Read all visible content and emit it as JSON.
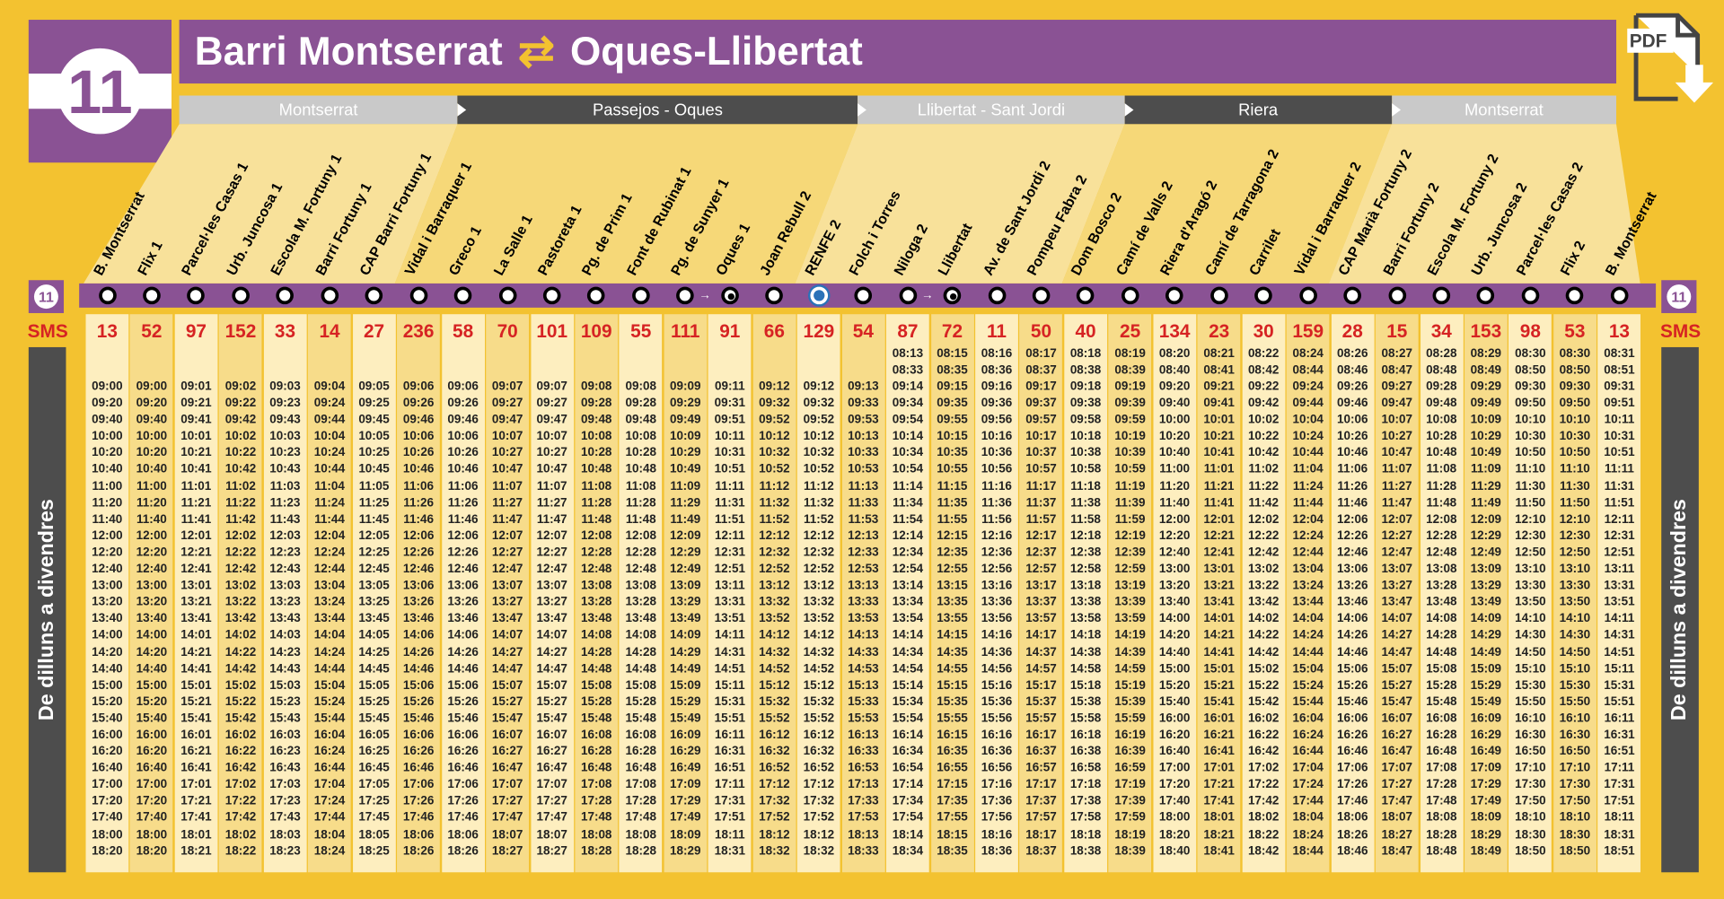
{
  "line": "11",
  "title": {
    "from": "Barri Montserrat",
    "arrows": "⇄",
    "to": "Oques-Llibertat"
  },
  "pdf_label": "PDF",
  "zones": [
    {
      "label": "Montserrat",
      "style": "light",
      "start": 0,
      "end": 7
    },
    {
      "label": "Passejos - Oques",
      "style": "dark",
      "start": 7,
      "end": 16
    },
    {
      "label": "Llibertat - Sant Jordi",
      "style": "light",
      "start": 16,
      "end": 22
    },
    {
      "label": "Riera",
      "style": "dark",
      "start": 22,
      "end": 28
    },
    {
      "label": "Montserrat",
      "style": "light",
      "start": 28,
      "end": 35
    }
  ],
  "sms_label": "SMS",
  "side_label": "De dilluns a divendres",
  "stops": [
    {
      "name": "B. Montserrat",
      "code": "13",
      "type": "normal"
    },
    {
      "name": "Flix 1",
      "code": "52",
      "type": "normal"
    },
    {
      "name": "Parcel·les Casas 1",
      "code": "97",
      "type": "normal"
    },
    {
      "name": "Urb. Juncosa 1",
      "code": "152",
      "type": "normal"
    },
    {
      "name": "Escola M. Fortuny 1",
      "code": "33",
      "type": "normal"
    },
    {
      "name": "Barri Fortuny 1",
      "code": "14",
      "type": "normal"
    },
    {
      "name": "CAP Barri Fortuny 1",
      "code": "27",
      "type": "normal"
    },
    {
      "name": "Vidal i Barraquer 1",
      "code": "236",
      "type": "normal"
    },
    {
      "name": "Greco 1",
      "code": "58",
      "type": "normal"
    },
    {
      "name": "La Salle 1",
      "code": "70",
      "type": "normal"
    },
    {
      "name": "Pastoreta 1",
      "code": "101",
      "type": "normal"
    },
    {
      "name": "Pg. de Prim 1",
      "code": "109",
      "type": "normal"
    },
    {
      "name": "Font de Rubinat 1",
      "code": "55",
      "type": "normal"
    },
    {
      "name": "Pg. de Sunyer 1",
      "code": "111",
      "type": "normal"
    },
    {
      "name": "Oques 1",
      "code": "91",
      "type": "transfer"
    },
    {
      "name": "Joan Rebull 2",
      "code": "66",
      "type": "normal"
    },
    {
      "name": "RENFE 2",
      "code": "129",
      "type": "train"
    },
    {
      "name": "Folch i Torres",
      "code": "54",
      "type": "normal"
    },
    {
      "name": "Niloga 2",
      "code": "87",
      "type": "normal"
    },
    {
      "name": "Llibertat",
      "code": "72",
      "type": "transfer"
    },
    {
      "name": "Av. de Sant Jordi 2",
      "code": "11",
      "type": "normal"
    },
    {
      "name": "Pompeu Fabra 2",
      "code": "50",
      "type": "normal"
    },
    {
      "name": "Dom Bosco 2",
      "code": "40",
      "type": "normal"
    },
    {
      "name": "Camí de Valls 2",
      "code": "25",
      "type": "normal"
    },
    {
      "name": "Riera d'Aragó 2",
      "code": "134",
      "type": "normal"
    },
    {
      "name": "Camí de Tarragona 2",
      "code": "23",
      "type": "normal"
    },
    {
      "name": "Carrilet",
      "code": "30",
      "type": "normal"
    },
    {
      "name": "Vidal i Barraquer 2",
      "code": "159",
      "type": "normal"
    },
    {
      "name": "CAP Marià Fortuny 2",
      "code": "28",
      "type": "normal"
    },
    {
      "name": "Barri Fortuny 2",
      "code": "15",
      "type": "normal"
    },
    {
      "name": "Escola M. Fortuny 2",
      "code": "34",
      "type": "normal"
    },
    {
      "name": "Urb. Juncosa 2",
      "code": "153",
      "type": "normal"
    },
    {
      "name": "Parcel·les Casas 2",
      "code": "98",
      "type": "normal"
    },
    {
      "name": "Flix 2",
      "code": "53",
      "type": "normal"
    },
    {
      "name": "B. Montserrat",
      "code": "13",
      "type": "normal"
    }
  ],
  "first_trip_offsets": [
    null,
    null,
    null,
    null,
    null,
    null,
    null,
    null,
    null,
    null,
    null,
    null,
    null,
    null,
    null,
    null,
    null,
    null,
    -47,
    -45,
    -44,
    -43,
    -42,
    -41,
    -40,
    -39,
    -38,
    -36,
    -34,
    -33,
    -32,
    -31,
    -30,
    -30,
    -29
  ],
  "offsets": [
    0,
    0,
    1,
    2,
    3,
    4,
    5,
    6,
    6,
    7,
    7,
    8,
    8,
    9,
    11,
    12,
    12,
    13,
    14,
    15,
    16,
    17,
    18,
    19,
    20,
    21,
    22,
    24,
    26,
    27,
    28,
    29,
    30,
    30,
    31
  ],
  "departures_start": "09:00",
  "departures_end": "18:20",
  "departures_step_min": 20
}
